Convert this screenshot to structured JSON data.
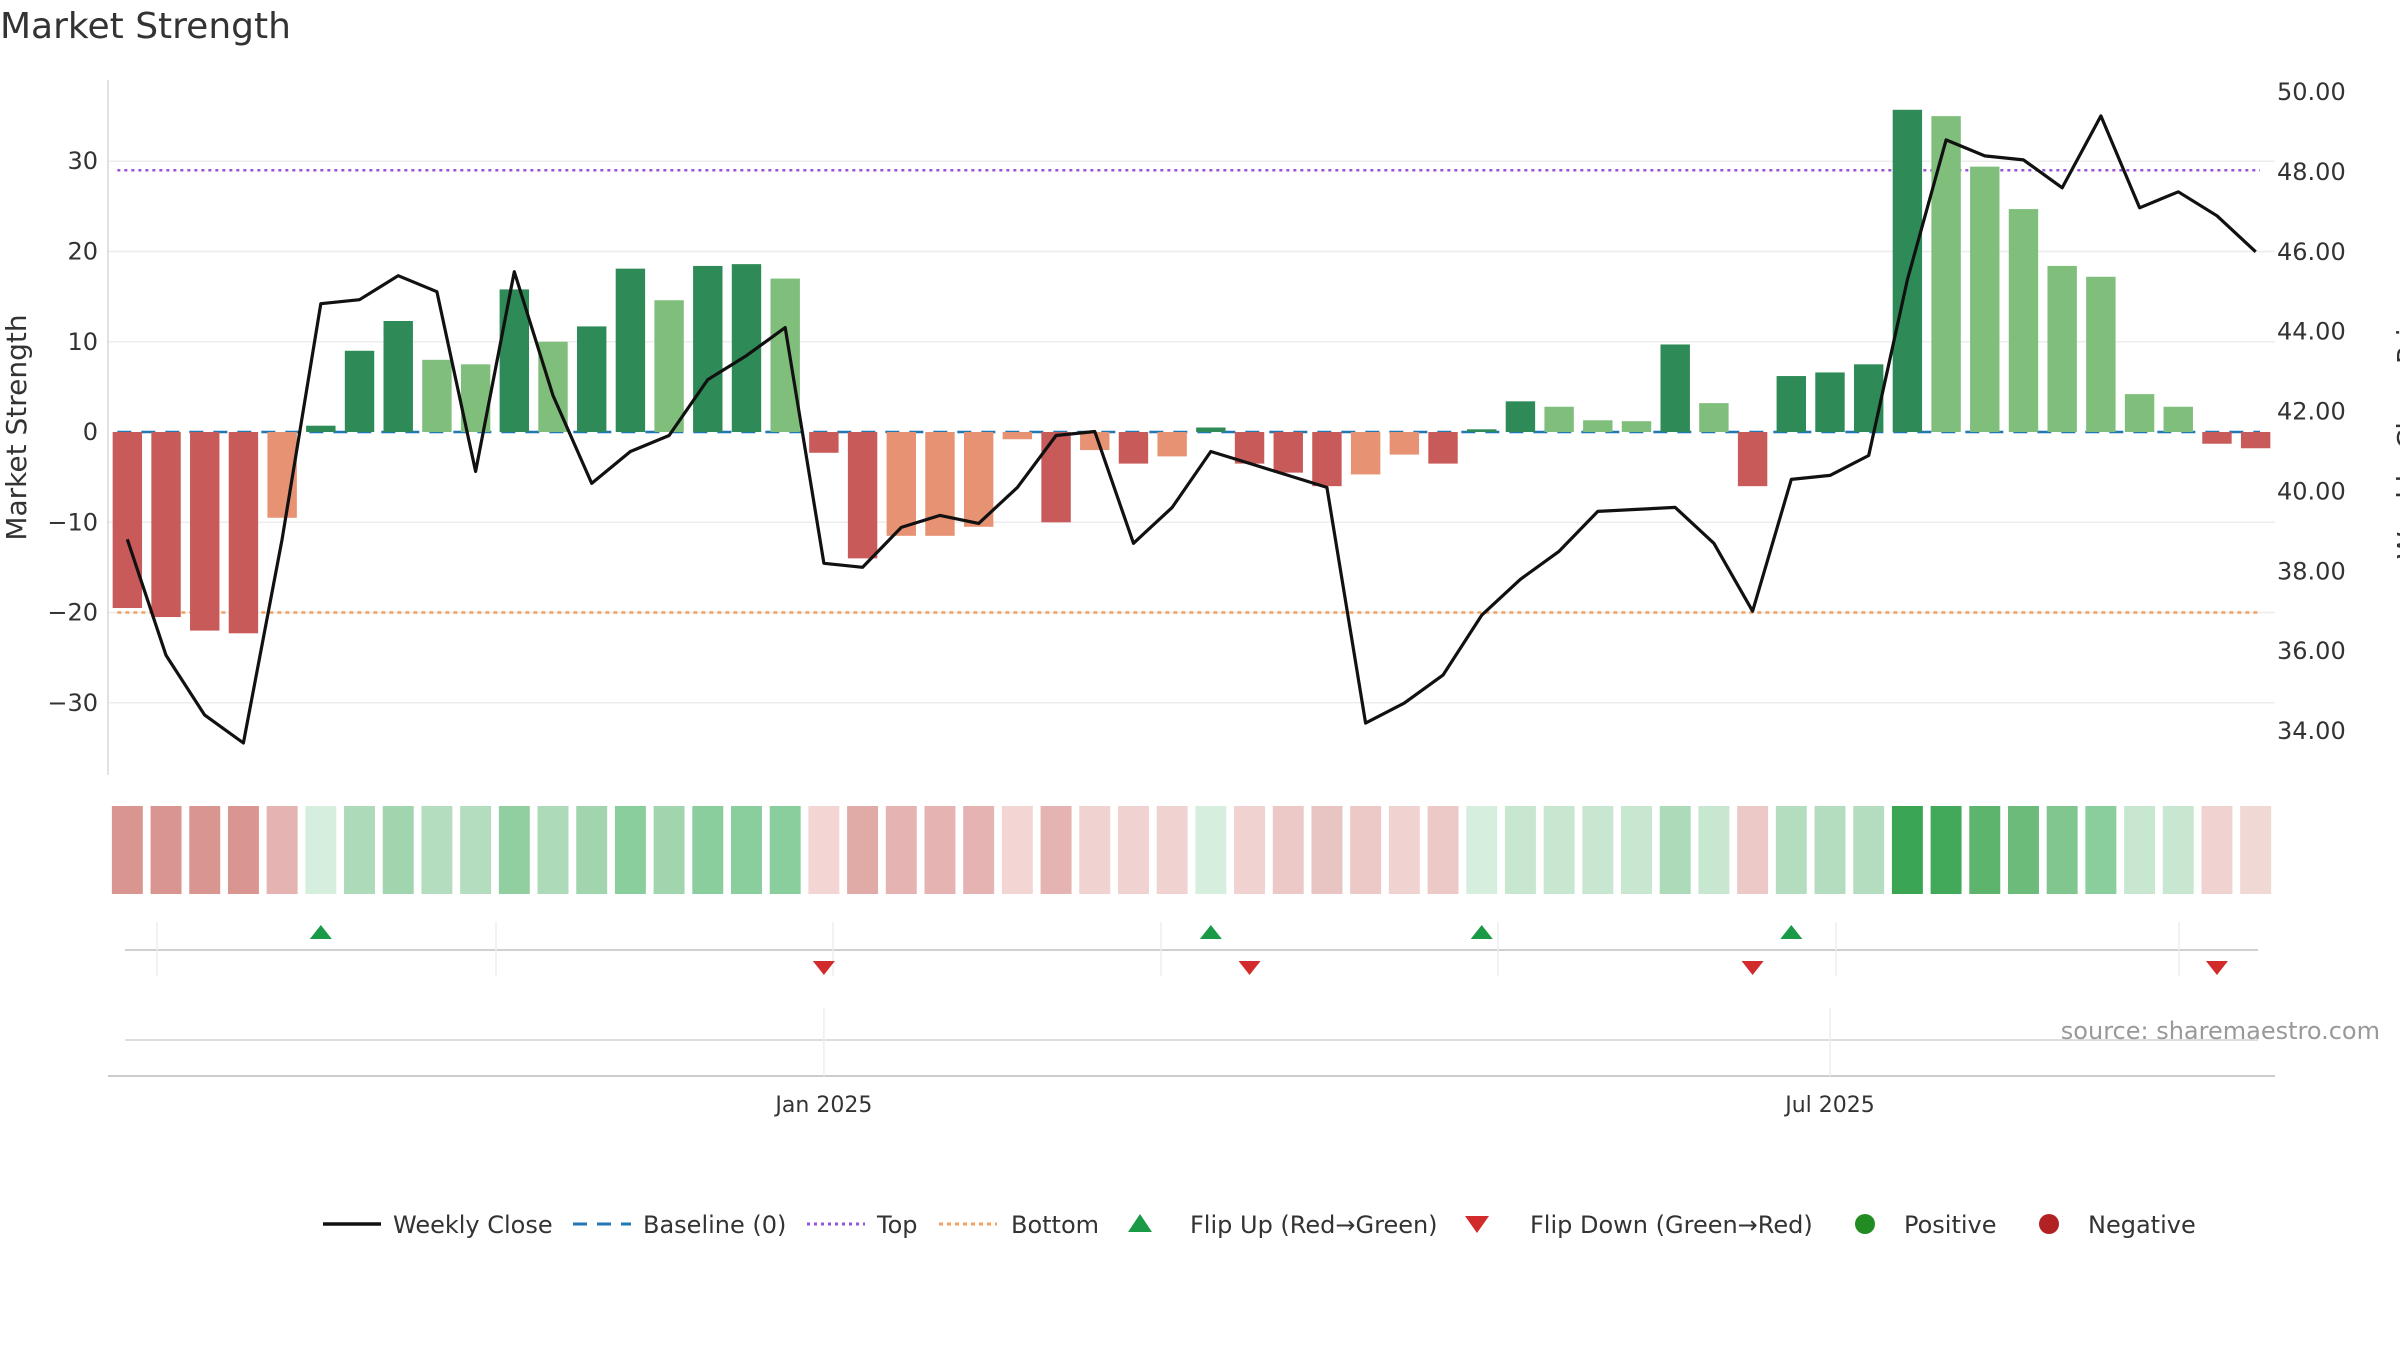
{
  "chart_data": {
    "type": "bar",
    "title": "Market Strength",
    "ylabel": "Market Strength",
    "y2label": "Weekly Close Price",
    "ylim": [
      -38,
      39
    ],
    "y2lim": [
      32.9,
      50.3
    ],
    "yticks": [
      30,
      20,
      10,
      0,
      -10,
      -20,
      -30
    ],
    "y2ticks": [
      50,
      48,
      46,
      44,
      42,
      40,
      38,
      36,
      34
    ],
    "y2tick_labels": [
      "50.00",
      "48.00",
      "46.00",
      "44.00",
      "42.00",
      "40.00",
      "38.00",
      "36.00",
      "34.00"
    ],
    "ytick_labels": [
      "30",
      "20",
      "10",
      "0",
      "−10",
      "−20",
      "−30"
    ],
    "top_level": 29,
    "bottom_level": -20,
    "baseline": 0,
    "x_ticks": [
      {
        "label": "Jan 2025",
        "week": 18.5
      },
      {
        "label": "Jul 2025",
        "week": 44.5
      }
    ],
    "strength": [
      -19.5,
      -20.5,
      -22,
      -22.3,
      -9.5,
      0.7,
      9,
      12.3,
      8,
      7.5,
      15.8,
      10,
      11.7,
      18.1,
      14.6,
      18.4,
      18.6,
      17,
      -2.3,
      -14,
      -11.5,
      -11.5,
      -10.5,
      -0.8,
      -10,
      -2,
      -3.5,
      -2.7,
      0.5,
      -3.5,
      -4.5,
      -6,
      -4.7,
      -2.5,
      -3.5,
      0.3,
      3.4,
      2.8,
      1.3,
      1.2,
      9.7,
      3.2,
      -6,
      6.2,
      6.6,
      7.5,
      35.7,
      35,
      29.4,
      24.7,
      18.4,
      17.2,
      4.2,
      2.8,
      -1.3,
      -1.8
    ],
    "bar_colors": [
      "#c85a5a",
      "#c85a5a",
      "#c85a5a",
      "#c85a5a",
      "#e69273",
      "#2e8b57",
      "#2e8b57",
      "#2e8b57",
      "#7fbf7b",
      "#7fbf7b",
      "#2e8b57",
      "#7fbf7b",
      "#2e8b57",
      "#2e8b57",
      "#7fbf7b",
      "#2e8b57",
      "#2e8b57",
      "#7fbf7b",
      "#c85a5a",
      "#c85a5a",
      "#e69273",
      "#e69273",
      "#e69273",
      "#e69273",
      "#c85a5a",
      "#e69273",
      "#c85a5a",
      "#e69273",
      "#2e8b57",
      "#c85a5a",
      "#c85a5a",
      "#c85a5a",
      "#e69273",
      "#e69273",
      "#c85a5a",
      "#2e8b57",
      "#2e8b57",
      "#7fbf7b",
      "#7fbf7b",
      "#7fbf7b",
      "#2e8b57",
      "#7fbf7b",
      "#c85a5a",
      "#2e8b57",
      "#2e8b57",
      "#2e8b57",
      "#2e8b57",
      "#7fbf7b",
      "#7fbf7b",
      "#7fbf7b",
      "#7fbf7b",
      "#7fbf7b",
      "#7fbf7b",
      "#7fbf7b",
      "#c85a5a",
      "#c85a5a"
    ],
    "weekly_close": [
      38.8,
      35.9,
      34.4,
      33.7,
      38.8,
      44.7,
      44.8,
      45.4,
      45.0,
      40.5,
      45.5,
      42.4,
      40.2,
      41.0,
      41.4,
      42.8,
      43.4,
      44.1,
      38.2,
      38.1,
      39.1,
      39.4,
      39.2,
      40.1,
      41.4,
      41.5,
      38.7,
      39.6,
      41.0,
      40.7,
      40.4,
      40.1,
      34.2,
      34.7,
      35.4,
      36.9,
      37.8,
      38.5,
      39.5,
      39.55,
      39.6,
      38.7,
      37.0,
      40.3,
      40.4,
      40.9,
      45.3,
      48.8,
      48.4,
      48.3,
      47.6,
      49.4,
      47.1,
      47.5,
      46.9,
      46.0
    ],
    "heat_colors": [
      "#d99590",
      "#d99590",
      "#d99590",
      "#d99590",
      "#e5b3b1",
      "#d5eedd",
      "#addbba",
      "#a0d5ae",
      "#b4ddc0",
      "#b4ddc0",
      "#91cfa1",
      "#addbba",
      "#a0d5ae",
      "#8bce9d",
      "#a0d5ae",
      "#8bce9d",
      "#8bce9d",
      "#8bce9d",
      "#f3d6d4",
      "#e0aaa7",
      "#e5b3b1",
      "#e5b3b1",
      "#e5b3b1",
      "#f3d6d4",
      "#e5b3b1",
      "#f0d2d0",
      "#f0d2d0",
      "#f0d2d0",
      "#d5eedd",
      "#f0d2d0",
      "#ecc9c7",
      "#e8c4c2",
      "#ecc9c7",
      "#f0d2d0",
      "#ecc9c7",
      "#d5eedd",
      "#c7e7d0",
      "#c7e7d0",
      "#c7e7d0",
      "#c7e7d0",
      "#addbba",
      "#c7e7d0",
      "#ecc9c7",
      "#b4ddc0",
      "#b4ddc0",
      "#b4ddc0",
      "#3aa653",
      "#43a95a",
      "#5db46c",
      "#6dbb7a",
      "#82c68f",
      "#8bce9d",
      "#c7e7d0",
      "#c7e7d0",
      "#f0d2d0",
      "#f0d8d5"
    ],
    "flips_up": [
      5,
      28,
      35,
      43
    ],
    "flips_down": [
      18,
      29,
      42,
      54
    ],
    "colors": {
      "up": "#1a9a46",
      "down": "#d22b2b",
      "line": "#111111",
      "baseline": "#1f77b4",
      "top": "#9a52d6",
      "bottom": "#f0a060",
      "positive": "#228b22",
      "negative": "#b22222"
    },
    "legend_position": "bottom-center",
    "legend": [
      "Weekly Close",
      "Baseline (0)",
      "Top",
      "Bottom",
      "Flip Up (Red→Green)",
      "Flip Down (Green→Red)",
      "Positive",
      "Negative"
    ],
    "source_note": "source: sharemaestro.com",
    "grid": true
  }
}
